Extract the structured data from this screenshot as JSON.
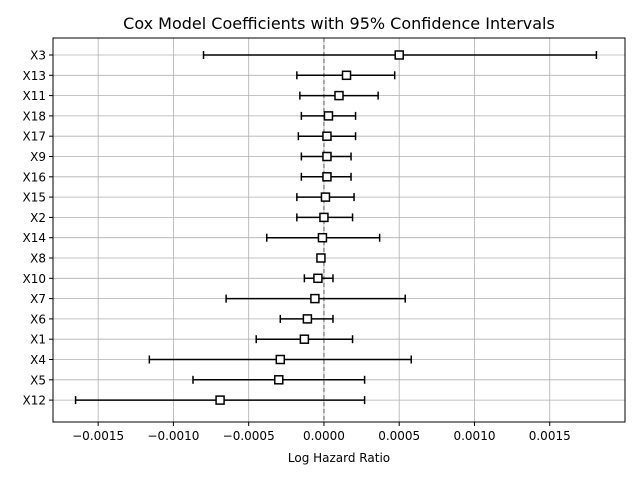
{
  "chart_data": {
    "type": "forest",
    "title": "Cox Model Coefficients with 95% Confidence Intervals",
    "xlabel": "Log Hazard Ratio",
    "ylabel": "",
    "xlim": [
      -0.0018,
      0.002
    ],
    "x_ticks": [
      -0.0015,
      -0.001,
      -0.0005,
      0.0,
      0.0005,
      0.001,
      0.0015
    ],
    "x_tick_labels": [
      "−0.0015",
      "−0.0010",
      "−0.0005",
      "0.0000",
      "0.0005",
      "0.0010",
      "0.0015"
    ],
    "reference_line": 0.0,
    "grid": true,
    "rows": [
      {
        "label": "X3",
        "coef": 0.0005,
        "lower": -0.0008,
        "upper": 0.00181
      },
      {
        "label": "X13",
        "coef": 0.00015,
        "lower": -0.00018,
        "upper": 0.00047
      },
      {
        "label": "X11",
        "coef": 0.0001,
        "lower": -0.00016,
        "upper": 0.00036
      },
      {
        "label": "X18",
        "coef": 3e-05,
        "lower": -0.00015,
        "upper": 0.00021
      },
      {
        "label": "X17",
        "coef": 2e-05,
        "lower": -0.00017,
        "upper": 0.00021
      },
      {
        "label": "X9",
        "coef": 2e-05,
        "lower": -0.00015,
        "upper": 0.00018
      },
      {
        "label": "X16",
        "coef": 2e-05,
        "lower": -0.00015,
        "upper": 0.00018
      },
      {
        "label": "X15",
        "coef": 1e-05,
        "lower": -0.00018,
        "upper": 0.0002
      },
      {
        "label": "X2",
        "coef": 0.0,
        "lower": -0.00018,
        "upper": 0.00019
      },
      {
        "label": "X14",
        "coef": -1e-05,
        "lower": -0.00038,
        "upper": 0.00037
      },
      {
        "label": "X8",
        "coef": -2e-05,
        "lower": -4e-05,
        "upper": -1e-05
      },
      {
        "label": "X10",
        "coef": -4e-05,
        "lower": -0.00013,
        "upper": 6e-05
      },
      {
        "label": "X7",
        "coef": -6e-05,
        "lower": -0.00065,
        "upper": 0.00054
      },
      {
        "label": "X6",
        "coef": -0.00011,
        "lower": -0.00029,
        "upper": 6e-05
      },
      {
        "label": "X1",
        "coef": -0.00013,
        "lower": -0.00045,
        "upper": 0.00019
      },
      {
        "label": "X4",
        "coef": -0.00029,
        "lower": -0.00116,
        "upper": 0.00058
      },
      {
        "label": "X5",
        "coef": -0.0003,
        "lower": -0.00087,
        "upper": 0.00027
      },
      {
        "label": "X12",
        "coef": -0.00069,
        "lower": -0.00165,
        "upper": 0.00027
      }
    ]
  }
}
